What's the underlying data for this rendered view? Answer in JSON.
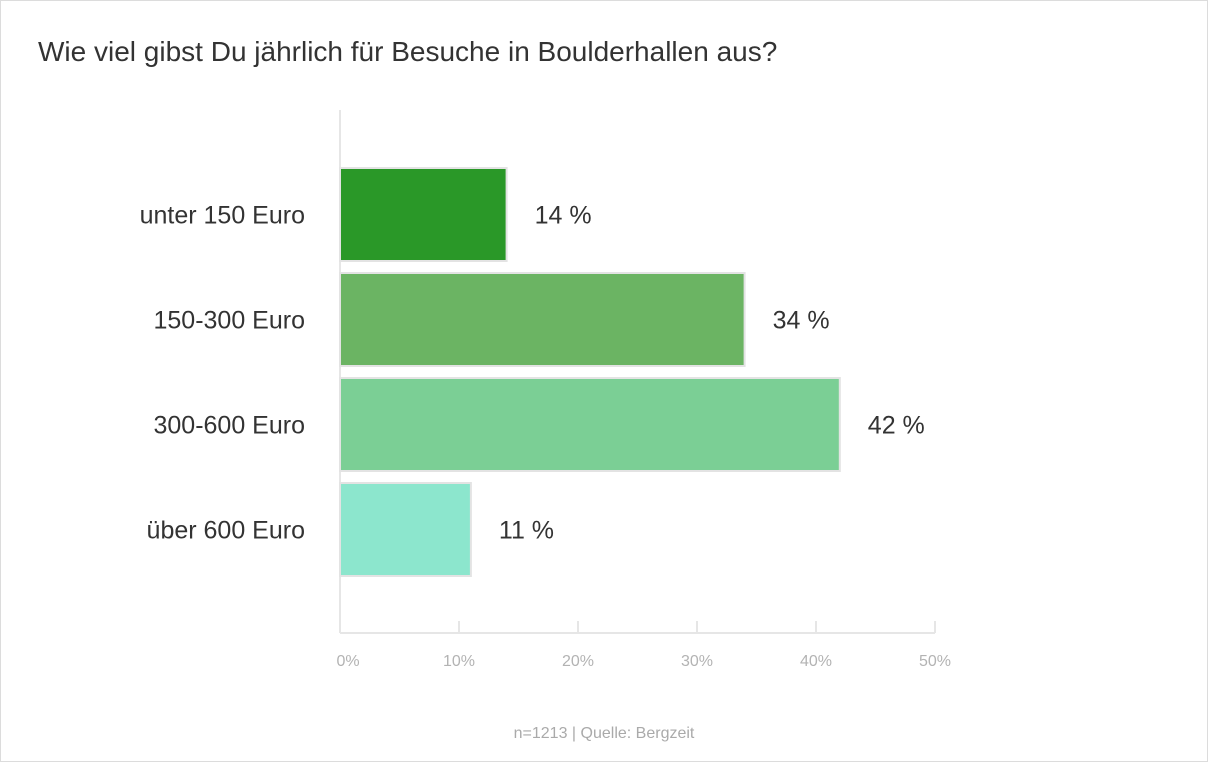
{
  "chart_data": {
    "type": "bar",
    "orientation": "horizontal",
    "title": "Wie viel gibst Du jährlich für Besuche in Boulderhallen aus?",
    "categories": [
      "unter 150 Euro",
      "150-300 Euro",
      "300-600 Euro",
      "über 600 Euro"
    ],
    "values": [
      14,
      34,
      42,
      11
    ],
    "value_labels": [
      "14 %",
      "34 %",
      "42 %",
      "11 %"
    ],
    "colors": [
      "#2a9828",
      "#6bb463",
      "#7bcf95",
      "#8ce6cd"
    ],
    "xlim": [
      0,
      50
    ],
    "xticks": [
      0,
      10,
      20,
      30,
      40,
      50
    ],
    "xtick_labels": [
      "0%",
      "10%",
      "20%",
      "30%",
      "40%",
      "50%"
    ],
    "xlabel": "",
    "ylabel": "",
    "grid": false,
    "source": "n=1213 | Quelle: Bergzeit"
  }
}
